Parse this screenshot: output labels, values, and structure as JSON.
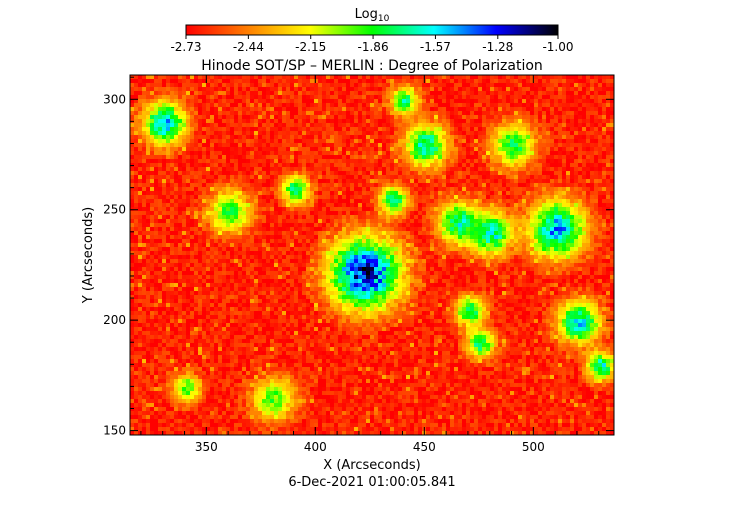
{
  "chart_data": {
    "type": "heatmap",
    "title": "Hinode SOT/SP – MERLIN : Degree of Polarization",
    "xlabel": "X (Arcseconds)",
    "ylabel": "Y (Arcseconds)",
    "timestamp": "6-Dec-2021 01:00:05.841",
    "xlim": [
      315,
      537
    ],
    "ylim": [
      148,
      311
    ],
    "xticks": [
      350,
      400,
      450,
      500
    ],
    "yticks": [
      150,
      200,
      250,
      300
    ],
    "colorbar": {
      "label": "Log",
      "label_sub": "10",
      "range": [
        -2.73,
        -1.0
      ],
      "ticks": [
        "-2.73",
        "-2.44",
        "-2.15",
        "-1.86",
        "-1.57",
        "-1.28",
        "-1.00"
      ],
      "colors": [
        "#ff0000",
        "#ff7f00",
        "#ffff00",
        "#00ff00",
        "#00ffff",
        "#0000ff",
        "#000000"
      ]
    },
    "features": [
      {
        "x": 422,
        "y": 222,
        "value": -1.1,
        "size": 5
      },
      {
        "x": 330,
        "y": 290,
        "value": -1.45,
        "size": 3
      },
      {
        "x": 510,
        "y": 242,
        "value": -1.4,
        "size": 4
      },
      {
        "x": 480,
        "y": 240,
        "value": -1.55,
        "size": 3
      },
      {
        "x": 520,
        "y": 200,
        "value": -1.5,
        "size": 3
      },
      {
        "x": 530,
        "y": 180,
        "value": -1.55,
        "size": 2
      },
      {
        "x": 450,
        "y": 280,
        "value": -1.55,
        "size": 3
      },
      {
        "x": 465,
        "y": 245,
        "value": -1.6,
        "size": 3
      },
      {
        "x": 390,
        "y": 260,
        "value": -1.65,
        "size": 2
      },
      {
        "x": 435,
        "y": 255,
        "value": -1.6,
        "size": 2
      },
      {
        "x": 475,
        "y": 190,
        "value": -1.65,
        "size": 2
      },
      {
        "x": 470,
        "y": 205,
        "value": -1.62,
        "size": 2
      },
      {
        "x": 360,
        "y": 250,
        "value": -1.8,
        "size": 3
      },
      {
        "x": 490,
        "y": 280,
        "value": -1.7,
        "size": 3
      },
      {
        "x": 440,
        "y": 300,
        "value": -1.7,
        "size": 2
      },
      {
        "x": 380,
        "y": 165,
        "value": -1.85,
        "size": 3
      },
      {
        "x": 340,
        "y": 170,
        "value": -1.85,
        "size": 2
      }
    ]
  }
}
